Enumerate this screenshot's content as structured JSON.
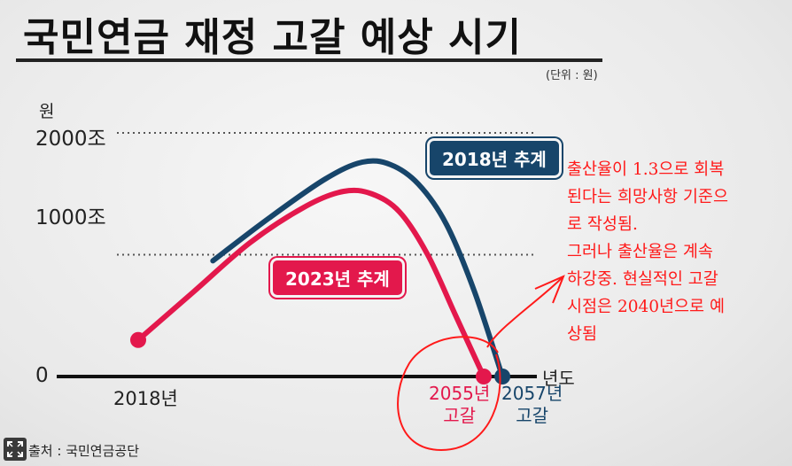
{
  "title": "국민연금 재정 고갈 예상 시기",
  "unit_note": "(단위 : 원)",
  "source": "출처 : 국민연금공단",
  "chart_data": {
    "type": "line",
    "ylabel": "원",
    "xlabel": "년도",
    "y_ticks": [
      "2000조",
      "1000조",
      "0"
    ],
    "x_tick_label": "2018년",
    "ylim": [
      0,
      2000
    ],
    "grid": "dotted at 1000조 and 2000조",
    "series": [
      {
        "name": "2023년 추계",
        "color": "#e3184c",
        "x": [
          2018,
          2024,
          2030,
          2036,
          2040,
          2043,
          2046,
          2049,
          2052,
          2055
        ],
        "y": [
          300,
          700,
          1100,
          1400,
          1520,
          1500,
          1350,
          1000,
          500,
          0
        ],
        "depletion_label": [
          "2055년",
          "고갈"
        ]
      },
      {
        "name": "2018년 추계",
        "color": "#17456a",
        "x": [
          2026,
          2032,
          2038,
          2042,
          2045,
          2048,
          2051,
          2054,
          2057
        ],
        "y": [
          950,
          1300,
          1620,
          1760,
          1740,
          1580,
          1250,
          700,
          0
        ],
        "depletion_label": [
          "2057년",
          "고갈"
        ]
      }
    ]
  },
  "annotation": {
    "lines": [
      "출산율이 1.3으로 회복",
      "된다는 희망사항 기준으",
      "로 작성됨.",
      "그러나 출산율은 계속",
      "하강중. 현실적인 고갈",
      "시점은 2040년으로 예",
      "상됨"
    ],
    "color": "#ff1a1a"
  },
  "controls": {
    "expand_icon": "expand-icon"
  }
}
